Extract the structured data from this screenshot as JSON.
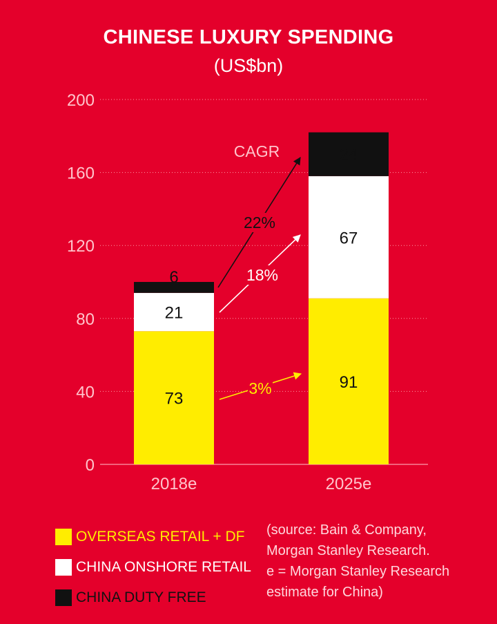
{
  "chart_data": {
    "type": "bar",
    "stacked": true,
    "title": "CHINESE LUXURY SPENDING",
    "subtitle": "(US$bn)",
    "categories": [
      "2018e",
      "2025e"
    ],
    "series": [
      {
        "name": "OVERSEAS RETAIL + DF",
        "color": "#ffed00",
        "text_color": "#ffed00",
        "values": [
          73,
          91
        ]
      },
      {
        "name": "CHINA ONSHORE RETAIL",
        "color": "#ffffff",
        "text_color": "#ffffff",
        "values": [
          21,
          67
        ]
      },
      {
        "name": "CHINA DUTY FREE",
        "color": "#111111",
        "text_color": "#111111",
        "values": [
          6,
          24
        ]
      }
    ],
    "ylim": [
      0,
      200
    ],
    "yticks": [
      0,
      40,
      80,
      120,
      160,
      200
    ],
    "grid": true,
    "cagr_label": "CAGR",
    "growth_arrows": [
      {
        "series": "CHINA DUTY FREE",
        "label": "22%",
        "color": "#111111"
      },
      {
        "series": "CHINA ONSHORE RETAIL",
        "label": "18%",
        "color": "#ffffff"
      },
      {
        "series": "OVERSEAS RETAIL + DF",
        "label": "3%",
        "color": "#ffed00"
      }
    ],
    "legend_position": "bottom-left"
  },
  "source_note": [
    "(source: Bain & Company,",
    "Morgan Stanley Research.",
    "e = Morgan Stanley Research",
    "estimate for China)"
  ]
}
